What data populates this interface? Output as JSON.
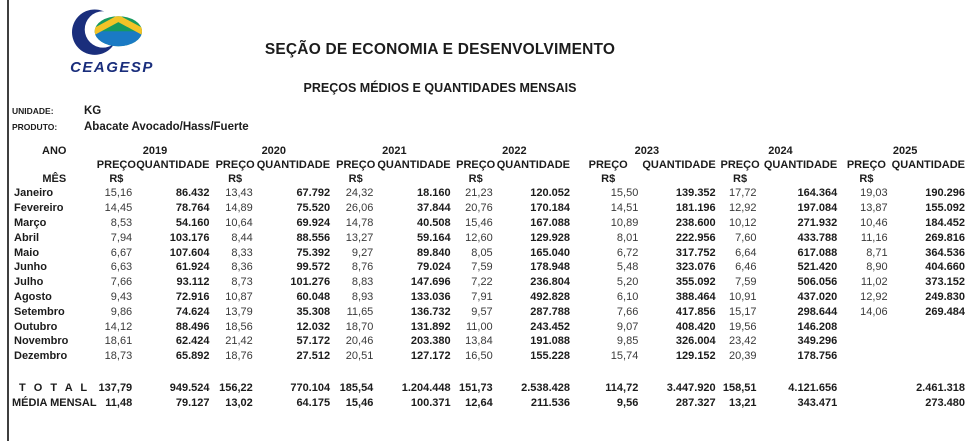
{
  "brand": {
    "logo_text": "CEAGESP"
  },
  "header": {
    "title": "SEÇÃO DE ECONOMIA E DESENVOLVIMENTO",
    "subtitle": "PREÇOS MÉDIOS E QUANTIDADES MENSAIS"
  },
  "meta": {
    "unidade_label": "UNIDADE:",
    "unidade_value": "KG",
    "produto_label": "PRODUTO:",
    "produto_value": "Abacate Avocado/Hass/Fuerte"
  },
  "colors": {
    "brand_navy": "#1a2e7c",
    "logo_green": "#169a5f",
    "logo_yellow": "#f2c327",
    "logo_blue": "#1a7ac4"
  },
  "table": {
    "ano_label": "ANO",
    "mes_label": "MÊS",
    "preco_label": "PREÇO",
    "quantidade_label": "QUANTIDADE",
    "currency_label": "R$",
    "years": [
      "2019",
      "2020",
      "2021",
      "2022",
      "2023",
      "2024",
      "2025"
    ],
    "rows": [
      {
        "month": "Janeiro",
        "cells": [
          "15,16",
          "86.432",
          "13,43",
          "67.792",
          "24,32",
          "18.160",
          "21,23",
          "120.052",
          "15,50",
          "139.352",
          "17,72",
          "164.364",
          "19,03",
          "190.296"
        ]
      },
      {
        "month": "Fevereiro",
        "cells": [
          "14,45",
          "78.764",
          "14,89",
          "75.520",
          "26,06",
          "37.844",
          "20,76",
          "170.184",
          "14,51",
          "181.196",
          "12,92",
          "197.084",
          "13,87",
          "155.092"
        ]
      },
      {
        "month": "Março",
        "cells": [
          "8,53",
          "54.160",
          "10,64",
          "69.924",
          "14,78",
          "40.508",
          "15,46",
          "167.088",
          "10,89",
          "238.600",
          "10,12",
          "271.932",
          "10,46",
          "184.452"
        ]
      },
      {
        "month": "Abril",
        "cells": [
          "7,94",
          "103.176",
          "8,44",
          "88.556",
          "13,27",
          "59.164",
          "12,60",
          "129.928",
          "8,01",
          "222.956",
          "7,60",
          "433.788",
          "11,16",
          "269.816"
        ]
      },
      {
        "month": "Maio",
        "cells": [
          "6,67",
          "107.604",
          "8,33",
          "75.392",
          "9,27",
          "89.840",
          "8,05",
          "165.040",
          "6,72",
          "317.752",
          "6,64",
          "617.088",
          "8,71",
          "364.536"
        ]
      },
      {
        "month": "Junho",
        "cells": [
          "6,63",
          "61.924",
          "8,36",
          "99.572",
          "8,76",
          "79.024",
          "7,59",
          "178.948",
          "5,48",
          "323.076",
          "6,46",
          "521.420",
          "8,90",
          "404.660"
        ]
      },
      {
        "month": "Julho",
        "cells": [
          "7,66",
          "93.112",
          "8,73",
          "101.276",
          "8,83",
          "147.696",
          "7,22",
          "236.804",
          "5,20",
          "355.092",
          "7,59",
          "506.056",
          "11,02",
          "373.152"
        ]
      },
      {
        "month": "Agosto",
        "cells": [
          "9,43",
          "72.916",
          "10,87",
          "60.048",
          "8,93",
          "133.036",
          "7,91",
          "492.828",
          "6,10",
          "388.464",
          "10,91",
          "437.020",
          "12,92",
          "249.830"
        ]
      },
      {
        "month": "Setembro",
        "cells": [
          "9,86",
          "74.624",
          "13,79",
          "35.308",
          "11,65",
          "136.732",
          "9,57",
          "287.788",
          "7,66",
          "417.856",
          "15,17",
          "298.644",
          "14,06",
          "269.484"
        ]
      },
      {
        "month": "Outubro",
        "cells": [
          "14,12",
          "88.496",
          "18,56",
          "12.032",
          "18,70",
          "131.892",
          "11,00",
          "243.452",
          "9,07",
          "408.420",
          "19,56",
          "146.208",
          "",
          ""
        ]
      },
      {
        "month": "Novembro",
        "cells": [
          "18,61",
          "62.424",
          "21,42",
          "57.172",
          "20,46",
          "203.380",
          "13,84",
          "191.088",
          "9,85",
          "326.004",
          "23,42",
          "349.296",
          "",
          ""
        ]
      },
      {
        "month": "Dezembro",
        "cells": [
          "18,73",
          "65.892",
          "18,76",
          "27.512",
          "20,51",
          "127.172",
          "16,50",
          "155.228",
          "15,74",
          "129.152",
          "20,39",
          "178.756",
          "",
          ""
        ]
      }
    ],
    "total_row": {
      "label": "T O T A L",
      "cells": [
        "137,79",
        "949.524",
        "156,22",
        "770.104",
        "185,54",
        "1.204.448",
        "151,73",
        "2.538.428",
        "114,72",
        "3.447.920",
        "158,51",
        "4.121.656",
        "",
        "2.461.318"
      ]
    },
    "media_row": {
      "label": "MÉDIA MENSAL",
      "cells": [
        "11,48",
        "79.127",
        "13,02",
        "64.175",
        "15,46",
        "100.371",
        "12,64",
        "211.536",
        "9,56",
        "287.327",
        "13,21",
        "343.471",
        "",
        "273.480"
      ]
    }
  }
}
